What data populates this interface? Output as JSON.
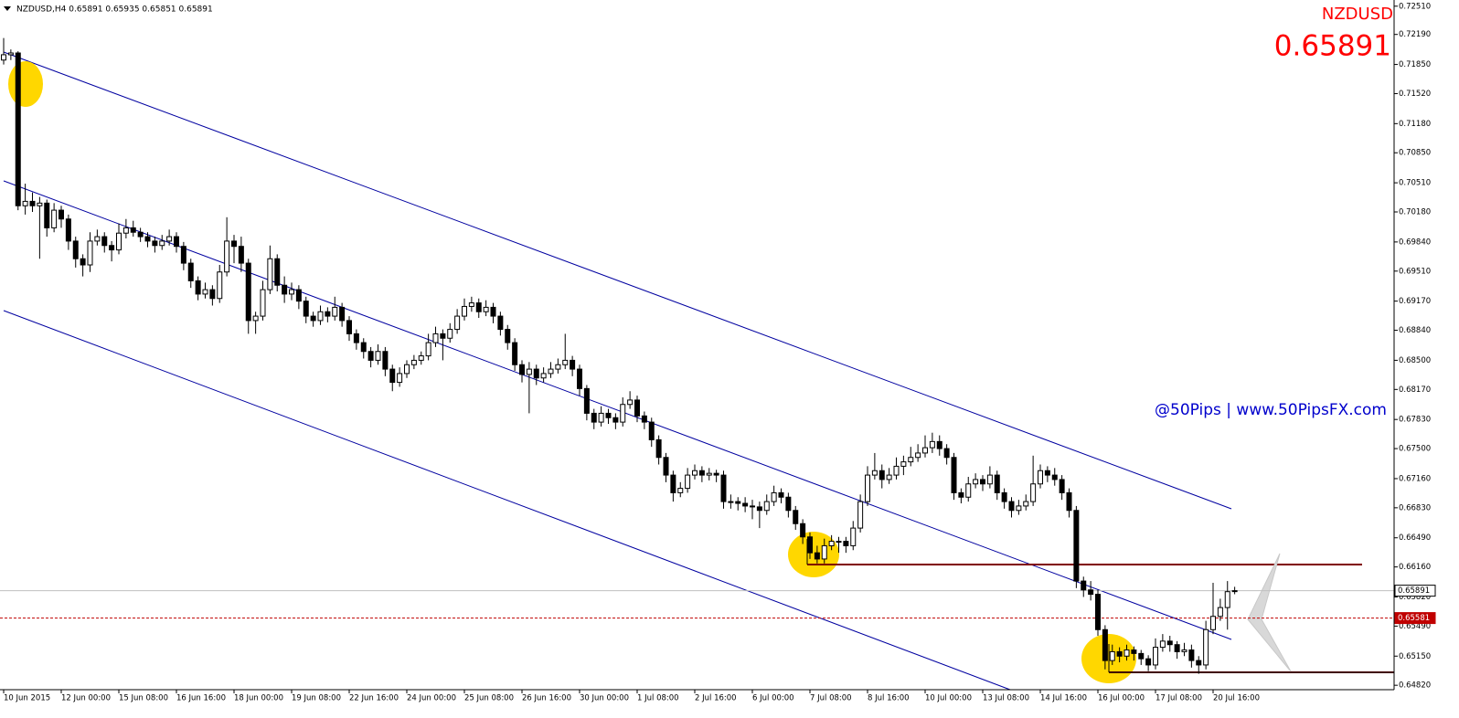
{
  "chart_data": {
    "type": "candlestick",
    "header": "NZDUSD,H4  0.65891 0.65935 0.65851 0.65891",
    "symbol": "NZDUSD",
    "price": "0.65891",
    "watermark": "@50Pips | www.50PipsFX.com",
    "up_color": "#ffffff",
    "down_color": "#000000",
    "ylim": [
      0.6477,
      0.7258
    ],
    "yticks": [
      {
        "value": 0.7251,
        "label": "0.72510"
      },
      {
        "value": 0.7219,
        "label": "0.72190"
      },
      {
        "value": 0.7185,
        "label": "0.71850"
      },
      {
        "value": 0.7152,
        "label": "0.71520"
      },
      {
        "value": 0.7118,
        "label": "0.71180"
      },
      {
        "value": 0.7085,
        "label": "0.70850"
      },
      {
        "value": 0.7051,
        "label": "0.70510"
      },
      {
        "value": 0.7018,
        "label": "0.70180"
      },
      {
        "value": 0.6984,
        "label": "0.69840"
      },
      {
        "value": 0.6951,
        "label": "0.69510"
      },
      {
        "value": 0.6917,
        "label": "0.69170"
      },
      {
        "value": 0.6884,
        "label": "0.68840"
      },
      {
        "value": 0.685,
        "label": "0.68500"
      },
      {
        "value": 0.6817,
        "label": "0.68170"
      },
      {
        "value": 0.6783,
        "label": "0.67830"
      },
      {
        "value": 0.675,
        "label": "0.67500"
      },
      {
        "value": 0.6716,
        "label": "0.67160"
      },
      {
        "value": 0.6683,
        "label": "0.66830"
      },
      {
        "value": 0.6649,
        "label": "0.66490"
      },
      {
        "value": 0.6616,
        "label": "0.66160"
      },
      {
        "value": 0.6582,
        "label": "0.65820"
      },
      {
        "value": 0.6549,
        "label": "0.65490"
      },
      {
        "value": 0.6515,
        "label": "0.65150"
      },
      {
        "value": 0.6482,
        "label": "0.64820"
      }
    ],
    "levels": [
      {
        "value": 0.65891,
        "label": "0.65891",
        "color": "#c0c0c0",
        "style": "solid"
      },
      {
        "value": 0.65581,
        "label": "0.65581",
        "color": "#c00000",
        "style": "dashed"
      }
    ],
    "categories": [
      "10 Jun 2015",
      null,
      null,
      null,
      null,
      null,
      null,
      null,
      "12 Jun 00:00",
      null,
      null,
      null,
      null,
      null,
      null,
      null,
      "15 Jun 08:00",
      null,
      null,
      null,
      null,
      null,
      null,
      null,
      "16 Jun 16:00",
      null,
      null,
      null,
      null,
      null,
      null,
      null,
      "18 Jun 00:00",
      null,
      null,
      null,
      null,
      null,
      null,
      null,
      "19 Jun 08:00",
      null,
      null,
      null,
      null,
      null,
      null,
      null,
      "22 Jun 16:00",
      null,
      null,
      null,
      null,
      null,
      null,
      null,
      "24 Jun 00:00",
      null,
      null,
      null,
      null,
      null,
      null,
      null,
      "25 Jun 08:00",
      null,
      null,
      null,
      null,
      null,
      null,
      null,
      "26 Jun 16:00",
      null,
      null,
      null,
      null,
      null,
      null,
      null,
      "30 Jun 00:00",
      null,
      null,
      null,
      null,
      null,
      null,
      null,
      "1 Jul 08:00",
      null,
      null,
      null,
      null,
      null,
      null,
      null,
      "2 Jul 16:00",
      null,
      null,
      null,
      null,
      null,
      null,
      null,
      "6 Jul 00:00",
      null,
      null,
      null,
      null,
      null,
      null,
      null,
      "7 Jul 08:00",
      null,
      null,
      null,
      null,
      null,
      null,
      null,
      "8 Jul 16:00",
      null,
      null,
      null,
      null,
      null,
      null,
      null,
      "10 Jul 00:00",
      null,
      null,
      null,
      null,
      null,
      null,
      null,
      "13 Jul 08:00",
      null,
      null,
      null,
      null,
      null,
      null,
      null,
      "14 Jul 16:00",
      null,
      null,
      null,
      null,
      null,
      null,
      null,
      "16 Jul 00:00",
      null,
      null,
      null,
      null,
      null,
      null,
      null,
      "17 Jul 08:00",
      null,
      null,
      null,
      null,
      null,
      null,
      null,
      "20 Jul 16:00",
      null,
      null,
      null
    ],
    "candles": [
      [
        0.719,
        0.7215,
        0.7185,
        0.7196
      ],
      [
        0.7196,
        0.7202,
        0.719,
        0.7198
      ],
      [
        0.7198,
        0.72,
        0.702,
        0.7025
      ],
      [
        0.7025,
        0.705,
        0.7015,
        0.703
      ],
      [
        0.703,
        0.704,
        0.7018,
        0.7025
      ],
      [
        0.7025,
        0.7035,
        0.6965,
        0.7028
      ],
      [
        0.7028,
        0.7032,
        0.699,
        0.7
      ],
      [
        0.7,
        0.7028,
        0.6995,
        0.702
      ],
      [
        0.702,
        0.7025,
        0.7,
        0.701
      ],
      [
        0.701,
        0.7015,
        0.6975,
        0.6985
      ],
      [
        0.6985,
        0.699,
        0.6955,
        0.6965
      ],
      [
        0.6965,
        0.697,
        0.6945,
        0.6958
      ],
      [
        0.6958,
        0.6995,
        0.695,
        0.6985
      ],
      [
        0.6985,
        0.6998,
        0.698,
        0.699
      ],
      [
        0.699,
        0.6995,
        0.6972,
        0.698
      ],
      [
        0.698,
        0.6985,
        0.6962,
        0.6975
      ],
      [
        0.6975,
        0.7005,
        0.697,
        0.6994
      ],
      [
        0.6994,
        0.701,
        0.6988,
        0.7
      ],
      [
        0.7,
        0.7008,
        0.699,
        0.6995
      ],
      [
        0.6995,
        0.7,
        0.6984,
        0.699
      ],
      [
        0.699,
        0.6995,
        0.6978,
        0.6985
      ],
      [
        0.6985,
        0.699,
        0.6972,
        0.698
      ],
      [
        0.698,
        0.6992,
        0.6975,
        0.6985
      ],
      [
        0.6985,
        0.6998,
        0.698,
        0.699
      ],
      [
        0.699,
        0.6995,
        0.6972,
        0.6979
      ],
      [
        0.6979,
        0.6984,
        0.6952,
        0.696
      ],
      [
        0.696,
        0.6965,
        0.6932,
        0.694
      ],
      [
        0.694,
        0.6945,
        0.6918,
        0.6925
      ],
      [
        0.6925,
        0.6938,
        0.692,
        0.693
      ],
      [
        0.693,
        0.6935,
        0.6912,
        0.692
      ],
      [
        0.692,
        0.6958,
        0.6915,
        0.695
      ],
      [
        0.695,
        0.7012,
        0.6945,
        0.6985
      ],
      [
        0.6985,
        0.6992,
        0.696,
        0.6979
      ],
      [
        0.6979,
        0.699,
        0.695,
        0.696
      ],
      [
        0.696,
        0.6965,
        0.688,
        0.6895
      ],
      [
        0.6895,
        0.6905,
        0.688,
        0.69
      ],
      [
        0.69,
        0.694,
        0.6895,
        0.693
      ],
      [
        0.693,
        0.698,
        0.6925,
        0.6965
      ],
      [
        0.6965,
        0.697,
        0.6928,
        0.6935
      ],
      [
        0.6935,
        0.6945,
        0.6915,
        0.6925
      ],
      [
        0.6925,
        0.6938,
        0.6918,
        0.693
      ],
      [
        0.693,
        0.6935,
        0.6908,
        0.6917
      ],
      [
        0.6917,
        0.6922,
        0.6892,
        0.69
      ],
      [
        0.69,
        0.6905,
        0.6888,
        0.6895
      ],
      [
        0.6895,
        0.6912,
        0.689,
        0.6905
      ],
      [
        0.6905,
        0.691,
        0.6893,
        0.69
      ],
      [
        0.69,
        0.6922,
        0.6895,
        0.691
      ],
      [
        0.691,
        0.6915,
        0.6888,
        0.6895
      ],
      [
        0.6895,
        0.69,
        0.6872,
        0.688
      ],
      [
        0.688,
        0.6885,
        0.6862,
        0.687
      ],
      [
        0.687,
        0.6875,
        0.6852,
        0.686
      ],
      [
        0.686,
        0.6865,
        0.6842,
        0.685
      ],
      [
        0.685,
        0.6868,
        0.6845,
        0.686
      ],
      [
        0.686,
        0.6865,
        0.6832,
        0.684
      ],
      [
        0.684,
        0.6845,
        0.6815,
        0.6825
      ],
      [
        0.6825,
        0.6842,
        0.682,
        0.6835
      ],
      [
        0.6835,
        0.685,
        0.683,
        0.6845
      ],
      [
        0.6845,
        0.6856,
        0.684,
        0.685
      ],
      [
        0.685,
        0.686,
        0.6845,
        0.6855
      ],
      [
        0.6855,
        0.688,
        0.685,
        0.687
      ],
      [
        0.687,
        0.6888,
        0.6865,
        0.688
      ],
      [
        0.688,
        0.6885,
        0.685,
        0.6875
      ],
      [
        0.6875,
        0.6892,
        0.687,
        0.6885
      ],
      [
        0.6885,
        0.6908,
        0.688,
        0.69
      ],
      [
        0.69,
        0.692,
        0.6895,
        0.6911
      ],
      [
        0.6911,
        0.6922,
        0.6905,
        0.6915
      ],
      [
        0.6915,
        0.692,
        0.6898,
        0.6905
      ],
      [
        0.6905,
        0.6918,
        0.69,
        0.691
      ],
      [
        0.691,
        0.6915,
        0.6892,
        0.69
      ],
      [
        0.69,
        0.6905,
        0.6878,
        0.6885
      ],
      [
        0.6885,
        0.689,
        0.6862,
        0.687
      ],
      [
        0.687,
        0.6875,
        0.6838,
        0.6845
      ],
      [
        0.6845,
        0.685,
        0.6825,
        0.6834
      ],
      [
        0.6834,
        0.6848,
        0.679,
        0.684
      ],
      [
        0.684,
        0.6845,
        0.6822,
        0.683
      ],
      [
        0.683,
        0.6842,
        0.6825,
        0.6835
      ],
      [
        0.6835,
        0.6848,
        0.683,
        0.684
      ],
      [
        0.684,
        0.6852,
        0.6835,
        0.6845
      ],
      [
        0.6845,
        0.688,
        0.684,
        0.685
      ],
      [
        0.685,
        0.6855,
        0.6832,
        0.684
      ],
      [
        0.684,
        0.6845,
        0.681,
        0.6818
      ],
      [
        0.6818,
        0.6822,
        0.6782,
        0.679
      ],
      [
        0.679,
        0.6795,
        0.6772,
        0.678
      ],
      [
        0.678,
        0.6798,
        0.6775,
        0.679
      ],
      [
        0.679,
        0.6795,
        0.6778,
        0.6785
      ],
      [
        0.6785,
        0.679,
        0.6772,
        0.678
      ],
      [
        0.678,
        0.6808,
        0.6775,
        0.68
      ],
      [
        0.68,
        0.6815,
        0.6795,
        0.6805
      ],
      [
        0.6805,
        0.681,
        0.678,
        0.6787
      ],
      [
        0.6787,
        0.6792,
        0.6772,
        0.678
      ],
      [
        0.678,
        0.6785,
        0.6752,
        0.676
      ],
      [
        0.676,
        0.6765,
        0.6732,
        0.674
      ],
      [
        0.674,
        0.6745,
        0.6712,
        0.672
      ],
      [
        0.672,
        0.6725,
        0.669,
        0.67
      ],
      [
        0.67,
        0.6712,
        0.6695,
        0.6705
      ],
      [
        0.6705,
        0.6728,
        0.67,
        0.672
      ],
      [
        0.672,
        0.6732,
        0.6715,
        0.6725
      ],
      [
        0.6725,
        0.673,
        0.6712,
        0.672
      ],
      [
        0.672,
        0.6728,
        0.6714,
        0.6722
      ],
      [
        0.6722,
        0.6726,
        0.6712,
        0.672
      ],
      [
        0.672,
        0.6725,
        0.6682,
        0.669
      ],
      [
        0.669,
        0.6698,
        0.6682,
        0.669
      ],
      [
        0.669,
        0.6695,
        0.668,
        0.6688
      ],
      [
        0.6688,
        0.6695,
        0.6678,
        0.6685
      ],
      [
        0.6685,
        0.6692,
        0.667,
        0.6684
      ],
      [
        0.6684,
        0.669,
        0.666,
        0.668
      ],
      [
        0.668,
        0.6698,
        0.6675,
        0.669
      ],
      [
        0.669,
        0.6708,
        0.6685,
        0.67
      ],
      [
        0.67,
        0.6705,
        0.6688,
        0.6695
      ],
      [
        0.6695,
        0.67,
        0.6672,
        0.668
      ],
      [
        0.668,
        0.6685,
        0.6658,
        0.6665
      ],
      [
        0.6665,
        0.667,
        0.6642,
        0.665
      ],
      [
        0.665,
        0.6655,
        0.6625,
        0.6632
      ],
      [
        0.6632,
        0.664,
        0.662,
        0.6625
      ],
      [
        0.6625,
        0.6648,
        0.662,
        0.664
      ],
      [
        0.664,
        0.6652,
        0.6635,
        0.6645
      ],
      [
        0.6645,
        0.665,
        0.6632,
        0.6645
      ],
      [
        0.6645,
        0.665,
        0.6632,
        0.664
      ],
      [
        0.664,
        0.6668,
        0.6635,
        0.666
      ],
      [
        0.666,
        0.6698,
        0.6655,
        0.669
      ],
      [
        0.669,
        0.673,
        0.6685,
        0.672
      ],
      [
        0.672,
        0.6745,
        0.6715,
        0.6725
      ],
      [
        0.6725,
        0.6732,
        0.6705,
        0.6715
      ],
      [
        0.6715,
        0.6728,
        0.671,
        0.672
      ],
      [
        0.672,
        0.674,
        0.6715,
        0.673
      ],
      [
        0.673,
        0.6742,
        0.672,
        0.6735
      ],
      [
        0.6735,
        0.6752,
        0.673,
        0.674
      ],
      [
        0.674,
        0.6755,
        0.6735,
        0.6745
      ],
      [
        0.6745,
        0.6765,
        0.674,
        0.6751
      ],
      [
        0.6751,
        0.6768,
        0.6745,
        0.6758
      ],
      [
        0.6758,
        0.6765,
        0.6742,
        0.675
      ],
      [
        0.675,
        0.6755,
        0.6732,
        0.674
      ],
      [
        0.674,
        0.6745,
        0.6692,
        0.67
      ],
      [
        0.67,
        0.6705,
        0.6688,
        0.6695
      ],
      [
        0.6695,
        0.6718,
        0.669,
        0.671
      ],
      [
        0.671,
        0.6722,
        0.6705,
        0.6715
      ],
      [
        0.6715,
        0.672,
        0.6702,
        0.671
      ],
      [
        0.671,
        0.673,
        0.6705,
        0.672
      ],
      [
        0.672,
        0.6725,
        0.6692,
        0.67
      ],
      [
        0.67,
        0.6705,
        0.6682,
        0.669
      ],
      [
        0.669,
        0.6695,
        0.6672,
        0.668
      ],
      [
        0.668,
        0.6692,
        0.6675,
        0.6685
      ],
      [
        0.6685,
        0.6698,
        0.668,
        0.669
      ],
      [
        0.669,
        0.6742,
        0.6685,
        0.671
      ],
      [
        0.671,
        0.6732,
        0.6705,
        0.6725
      ],
      [
        0.6725,
        0.673,
        0.6712,
        0.672
      ],
      [
        0.672,
        0.6728,
        0.6708,
        0.6715
      ],
      [
        0.6715,
        0.672,
        0.6692,
        0.67
      ],
      [
        0.67,
        0.6705,
        0.6672,
        0.668
      ],
      [
        0.668,
        0.6685,
        0.6592,
        0.66
      ],
      [
        0.66,
        0.6605,
        0.6582,
        0.659
      ],
      [
        0.659,
        0.66,
        0.6578,
        0.6585
      ],
      [
        0.6585,
        0.659,
        0.6538,
        0.6545
      ],
      [
        0.6545,
        0.655,
        0.65,
        0.651
      ],
      [
        0.651,
        0.6528,
        0.6505,
        0.652
      ],
      [
        0.652,
        0.6525,
        0.6508,
        0.6515
      ],
      [
        0.6515,
        0.6528,
        0.651,
        0.6522
      ],
      [
        0.6522,
        0.6526,
        0.651,
        0.6518
      ],
      [
        0.6518,
        0.6522,
        0.6505,
        0.6512
      ],
      [
        0.6512,
        0.6516,
        0.6498,
        0.6505
      ],
      [
        0.6505,
        0.6535,
        0.65,
        0.6525
      ],
      [
        0.6525,
        0.654,
        0.652,
        0.6532
      ],
      [
        0.6532,
        0.6538,
        0.652,
        0.6528
      ],
      [
        0.6528,
        0.6532,
        0.6512,
        0.652
      ],
      [
        0.652,
        0.653,
        0.6515,
        0.6522
      ],
      [
        0.6522,
        0.6528,
        0.6502,
        0.651
      ],
      [
        0.651,
        0.6515,
        0.6495,
        0.6505
      ],
      [
        0.6505,
        0.6555,
        0.65,
        0.6545
      ],
      [
        0.6545,
        0.6598,
        0.654,
        0.656
      ],
      [
        0.656,
        0.658,
        0.6555,
        0.657
      ],
      [
        0.657,
        0.66,
        0.6545,
        0.6588
      ],
      [
        0.65891,
        0.65935,
        0.65851,
        0.65891
      ]
    ]
  }
}
